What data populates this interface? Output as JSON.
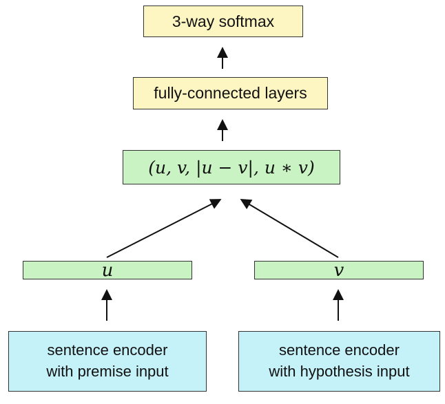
{
  "nodes": {
    "softmax": "3-way softmax",
    "fully_connected": "fully-connected layers",
    "concat": "(u, v, |u − v|, u ∗ v)",
    "u": "u",
    "v": "v",
    "premise_encoder": [
      "sentence encoder",
      "with premise input"
    ],
    "hypothesis_encoder": [
      "sentence encoder",
      "with hypothesis input"
    ]
  },
  "colors": {
    "softmax_fill": "#fdf6c3",
    "fc_fill": "#fdf6c3",
    "vector_fill": "#c9f3c3",
    "encoder_fill": "#c5f1f8"
  }
}
